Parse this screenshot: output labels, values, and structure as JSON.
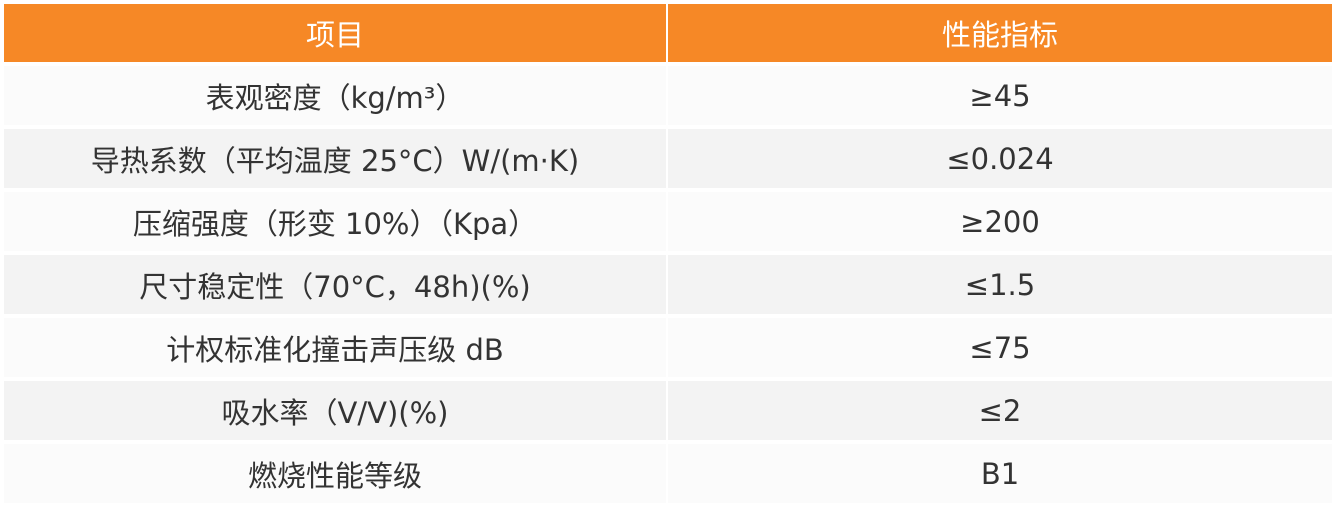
{
  "colors": {
    "header": "#f68826",
    "row_light": "#fbfbfb",
    "row_dark": "#f3f3f3"
  },
  "headers": [
    "项目",
    "性能指标"
  ],
  "rows": [
    [
      "表观密度（kg/m³）",
      "≥45"
    ],
    [
      "导热系数（平均温度 25°C）W/(m·K)",
      "≤0.024"
    ],
    [
      "压缩强度（形变 10%）（Kpa）",
      "≥200"
    ],
    [
      "尺寸稳定性（70°C，48h)(%)",
      "≤1.5"
    ],
    [
      "计权标准化撞击声压级 dB",
      "≤75"
    ],
    [
      "吸水率（V/V)(%)",
      "≤2"
    ],
    [
      "燃烧性能等级",
      "B1"
    ]
  ]
}
